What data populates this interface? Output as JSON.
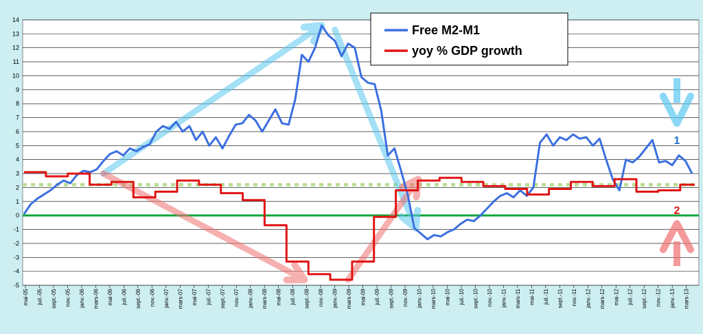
{
  "chart_data": {
    "type": "line",
    "title": "",
    "xlabel": "",
    "ylabel": "",
    "ylim": [
      -5,
      14
    ],
    "yticks": [
      -5,
      -4,
      -3,
      -2,
      -1,
      0,
      1,
      2,
      3,
      4,
      5,
      6,
      7,
      8,
      9,
      10,
      11,
      12,
      13,
      14
    ],
    "grid": true,
    "legend_position": "top-center",
    "xticks": [
      "mai-05",
      "juil.-05",
      "sept.-05",
      "nov.-05",
      "janv.-06",
      "mars-06",
      "mai-06",
      "juil.-06",
      "sept.-06",
      "nov.-06",
      "janv.-07",
      "mars-07",
      "mai-07",
      "juil.-07",
      "sept.-07",
      "nov.-07",
      "janv.-08",
      "mars-08",
      "mai-08",
      "juil.-08",
      "sept.-08",
      "nov.-08",
      "janv.-09",
      "mars-09",
      "mai-09",
      "juil.-09",
      "sept.-09",
      "nov.-09",
      "janv.-10",
      "mars-10",
      "mai-10",
      "juil.-10",
      "sept.-10",
      "nov.-10",
      "janv.-11",
      "mars-11",
      "mai-11",
      "juil.-11",
      "sept.-11",
      "nov.-11",
      "janv.-12",
      "mars-12",
      "mai-12",
      "juil.-12",
      "sept.-12",
      "nov.-12",
      "janv.-13",
      "mars-13"
    ],
    "series": [
      {
        "name": "Free M2-M1",
        "color": "#3b6fe0",
        "points": [
          [
            0,
            0.1
          ],
          [
            0.5,
            0.8
          ],
          [
            1,
            1.2
          ],
          [
            1.5,
            1.5
          ],
          [
            2,
            1.8
          ],
          [
            2.5,
            2.2
          ],
          [
            3,
            2.5
          ],
          [
            3.5,
            2.3
          ],
          [
            4,
            2.9
          ],
          [
            4.5,
            3.2
          ],
          [
            5,
            3.1
          ],
          [
            5.5,
            3.3
          ],
          [
            6,
            3.9
          ],
          [
            6.5,
            4.4
          ],
          [
            7,
            4.6
          ],
          [
            7.5,
            4.3
          ],
          [
            8,
            4.8
          ],
          [
            8.5,
            4.6
          ],
          [
            9,
            4.9
          ],
          [
            9.5,
            5.1
          ],
          [
            10,
            6.0
          ],
          [
            10.5,
            6.4
          ],
          [
            11,
            6.2
          ],
          [
            11.5,
            6.7
          ],
          [
            12,
            6.0
          ],
          [
            12.5,
            6.4
          ],
          [
            13,
            5.4
          ],
          [
            13.5,
            6.0
          ],
          [
            14,
            5.0
          ],
          [
            14.5,
            5.6
          ],
          [
            15,
            4.8
          ],
          [
            15.5,
            5.7
          ],
          [
            16,
            6.5
          ],
          [
            16.5,
            6.6
          ],
          [
            17,
            7.2
          ],
          [
            17.5,
            6.8
          ],
          [
            18,
            6.0
          ],
          [
            18.5,
            6.8
          ],
          [
            19,
            7.6
          ],
          [
            19.5,
            6.6
          ],
          [
            20,
            6.5
          ],
          [
            20.5,
            8.3
          ],
          [
            21,
            11.5
          ],
          [
            21.5,
            11.0
          ],
          [
            22,
            12.0
          ],
          [
            22.5,
            13.6
          ],
          [
            23,
            12.9
          ],
          [
            23.5,
            12.5
          ],
          [
            24,
            11.4
          ],
          [
            24.5,
            12.3
          ],
          [
            25,
            12.0
          ],
          [
            25.5,
            9.9
          ],
          [
            26,
            9.5
          ],
          [
            26.5,
            9.4
          ],
          [
            27,
            7.5
          ],
          [
            27.5,
            4.3
          ],
          [
            28,
            4.8
          ],
          [
            28.5,
            3.2
          ],
          [
            29,
            1.5
          ],
          [
            29.5,
            -0.9
          ],
          [
            30,
            -1.3
          ],
          [
            30.5,
            -1.7
          ],
          [
            31,
            -1.4
          ],
          [
            31.5,
            -1.5
          ],
          [
            32,
            -1.2
          ],
          [
            32.5,
            -1.0
          ],
          [
            33,
            -0.6
          ],
          [
            33.5,
            -0.3
          ],
          [
            34,
            -0.4
          ],
          [
            34.5,
            0.0
          ],
          [
            35,
            0.5
          ],
          [
            35.5,
            1.0
          ],
          [
            36,
            1.4
          ],
          [
            36.5,
            1.6
          ],
          [
            37,
            1.3
          ],
          [
            37.5,
            1.8
          ],
          [
            38,
            1.4
          ],
          [
            38.5,
            2.0
          ],
          [
            39,
            5.2
          ],
          [
            39.5,
            5.8
          ],
          [
            40,
            5.0
          ],
          [
            40.5,
            5.6
          ],
          [
            41,
            5.4
          ],
          [
            41.5,
            5.8
          ],
          [
            42,
            5.5
          ],
          [
            42.5,
            5.6
          ],
          [
            43,
            5.0
          ],
          [
            43.5,
            5.5
          ],
          [
            44,
            4.0
          ],
          [
            44.5,
            2.6
          ],
          [
            45,
            1.8
          ],
          [
            45.5,
            4.0
          ],
          [
            46,
            3.8
          ],
          [
            46.5,
            4.2
          ],
          [
            47,
            4.8
          ],
          [
            47.5,
            5.4
          ],
          [
            48,
            3.8
          ],
          [
            48.5,
            3.9
          ],
          [
            49,
            3.6
          ],
          [
            49.5,
            4.3
          ],
          [
            50,
            3.9
          ],
          [
            50.5,
            3.0
          ]
        ]
      },
      {
        "name": "yoy % GDP growth",
        "color": "#e01414",
        "points": [
          [
            0,
            3.1
          ],
          [
            3,
            3.1
          ],
          [
            3,
            2.8
          ],
          [
            6,
            2.8
          ],
          [
            6,
            3.0
          ],
          [
            9,
            3.0
          ],
          [
            9,
            2.2
          ],
          [
            12,
            2.2
          ],
          [
            12,
            2.4
          ],
          [
            15,
            2.4
          ],
          [
            15,
            1.3
          ],
          [
            18,
            1.3
          ],
          [
            18,
            1.7
          ],
          [
            21,
            1.7
          ],
          [
            21,
            2.5
          ],
          [
            24,
            2.5
          ],
          [
            24,
            2.2
          ],
          [
            27,
            2.2
          ],
          [
            27,
            1.6
          ],
          [
            30,
            1.6
          ],
          [
            30,
            1.1
          ],
          [
            33,
            1.1
          ],
          [
            33,
            -0.7
          ],
          [
            36,
            -0.7
          ],
          [
            36,
            -3.3
          ],
          [
            39,
            -3.3
          ],
          [
            39,
            -4.2
          ],
          [
            42,
            -4.2
          ],
          [
            42,
            -4.6
          ],
          [
            45,
            -4.6
          ],
          [
            45,
            -3.3
          ],
          [
            48,
            -3.3
          ],
          [
            48,
            -0.1
          ],
          [
            51,
            -0.1
          ],
          [
            51,
            1.8
          ],
          [
            54,
            1.8
          ],
          [
            54,
            2.5
          ],
          [
            57,
            2.5
          ],
          [
            57,
            2.7
          ],
          [
            60,
            2.7
          ],
          [
            60,
            2.4
          ],
          [
            63,
            2.4
          ],
          [
            63,
            2.1
          ],
          [
            66,
            2.1
          ],
          [
            66,
            1.9
          ],
          [
            69,
            1.9
          ],
          [
            69,
            1.5
          ],
          [
            72,
            1.5
          ],
          [
            72,
            1.9
          ],
          [
            75,
            1.9
          ],
          [
            75,
            2.4
          ],
          [
            78,
            2.4
          ],
          [
            78,
            2.1
          ],
          [
            81,
            2.1
          ],
          [
            81,
            2.6
          ],
          [
            84,
            2.6
          ],
          [
            84,
            1.7
          ],
          [
            87,
            1.7
          ],
          [
            87,
            1.8
          ],
          [
            90,
            1.8
          ],
          [
            90,
            2.2
          ],
          [
            92,
            2.2
          ]
        ]
      }
    ],
    "reference_lines": [
      {
        "y": 0,
        "color": "#10a43a",
        "style": "solid"
      },
      {
        "y": 2.2,
        "color": "#b9dd95",
        "style": "dotted"
      }
    ],
    "annotations": [
      {
        "text": "1",
        "color": "#1a6ec8"
      },
      {
        "text": "2",
        "color": "#e01414"
      }
    ]
  }
}
